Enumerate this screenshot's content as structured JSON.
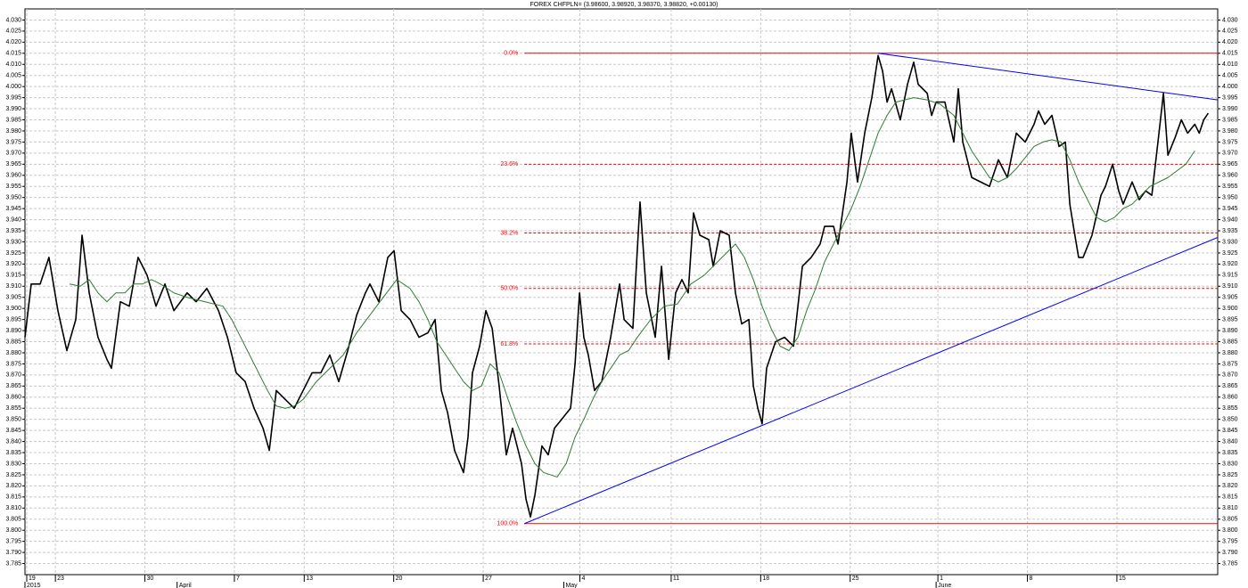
{
  "chart_data": {
    "type": "line",
    "title": "FOREX CHFPLN= (3.98600, 3.98920, 3.98370, 3.98820, +0.00130)",
    "xlim": [
      0,
      66.63
    ],
    "ylim": [
      3.78,
      4.035
    ],
    "grid": true,
    "yticks": [
      3.785,
      {
        "value": 3.79,
        "label": "3.790"
      },
      3.795,
      {
        "value": 3.8,
        "label": "3.800"
      },
      3.805,
      {
        "value": 3.81,
        "label": "3.810"
      },
      3.815,
      {
        "value": 3.82,
        "label": "3.820"
      },
      3.825,
      {
        "value": 3.83,
        "label": "3.830"
      },
      3.835,
      {
        "value": 3.84,
        "label": "3.840"
      },
      3.845,
      {
        "value": 3.85,
        "label": "3.850"
      },
      3.855,
      {
        "value": 3.86,
        "label": "3.860"
      },
      3.865,
      {
        "value": 3.87,
        "label": "3.870"
      },
      3.875,
      {
        "value": 3.88,
        "label": "3.880"
      },
      3.885,
      {
        "value": 3.89,
        "label": "3.890"
      },
      3.895,
      {
        "value": 3.9,
        "label": "3.900"
      },
      3.905,
      {
        "value": 3.91,
        "label": "3.910"
      },
      3.915,
      {
        "value": 3.92,
        "label": "3.920"
      },
      3.925,
      {
        "value": 3.93,
        "label": "3.930"
      },
      3.935,
      {
        "value": 3.94,
        "label": "3.940"
      },
      3.945,
      {
        "value": 3.95,
        "label": "3.950"
      },
      3.955,
      {
        "value": 3.96,
        "label": "3.960"
      },
      3.965,
      {
        "value": 3.97,
        "label": "3.970"
      },
      3.975,
      {
        "value": 3.98,
        "label": "3.980"
      },
      3.985,
      {
        "value": 3.99,
        "label": "3.990"
      },
      3.995,
      {
        "value": 4.0,
        "label": "4.000"
      },
      4.005,
      {
        "value": 4.01,
        "label": "4.010"
      },
      4.015,
      {
        "value": 4.02,
        "label": "4.020"
      },
      4.025,
      {
        "value": 4.03,
        "label": "4.030"
      }
    ],
    "xticks": [
      {
        "value": 0.1,
        "label": "19"
      },
      {
        "value": 1.7,
        "label": "23"
      },
      {
        "value": 6.7,
        "label": "30"
      },
      {
        "value": 11.7,
        "label": "7"
      },
      {
        "value": 15.6,
        "label": "13"
      },
      {
        "value": 20.6,
        "label": "20"
      },
      {
        "value": 25.6,
        "label": "27"
      },
      {
        "value": 31,
        "label": "4"
      },
      {
        "value": 36.1,
        "label": "11"
      },
      {
        "value": 41.1,
        "label": "18"
      },
      {
        "value": 46.1,
        "label": "25"
      },
      {
        "value": 51,
        "label": "1"
      },
      {
        "value": 56,
        "label": "8"
      },
      {
        "value": 61,
        "label": "15"
      }
    ],
    "month_labels": [
      {
        "value": 0,
        "label": "2015"
      },
      {
        "value": 8.5,
        "label": "April"
      },
      {
        "value": 30.1,
        "label": "May"
      },
      {
        "value": 50.9,
        "label": "June"
      }
    ],
    "series": [
      {
        "color": "#000000",
        "x": [
          0,
          0.35,
          0.85,
          1.34,
          1.84,
          2.34,
          2.84,
          3.19,
          3.59,
          4.08,
          4.58,
          4.83,
          5.33,
          5.83,
          6.32,
          6.82,
          7.32,
          7.82,
          8.32,
          9.06,
          9.56,
          10.16,
          10.81,
          11.31,
          11.8,
          12.3,
          12.8,
          13.3,
          13.65,
          14.04,
          14.54,
          15.04,
          15.54,
          16.04,
          16.53,
          17.03,
          17.53,
          18.03,
          18.53,
          19.02,
          19.27,
          19.77,
          20.27,
          20.62,
          21.02,
          21.51,
          22.01,
          22.51,
          22.91,
          23.26,
          23.61,
          24.0,
          24.5,
          24.75,
          25.0,
          25.4,
          25.75,
          26.1,
          26.49,
          26.89,
          27.24,
          27.49,
          27.74,
          27.99,
          28.24,
          28.49,
          28.88,
          29.23,
          29.58,
          29.98,
          30.48,
          30.73,
          30.98,
          31.22,
          31.47,
          31.82,
          32.22,
          32.72,
          33.22,
          33.47,
          33.96,
          34.36,
          34.71,
          35.21,
          35.56,
          35.96,
          36.35,
          36.7,
          37.05,
          37.35,
          37.7,
          38.2,
          38.45,
          38.84,
          39.34,
          39.69,
          40.04,
          40.44,
          40.69,
          40.94,
          41.18,
          41.43,
          41.93,
          42.43,
          42.93,
          43.43,
          43.92,
          44.42,
          44.67,
          45.17,
          45.42,
          45.92,
          46.16,
          46.51,
          46.91,
          47.31,
          47.66,
          47.91,
          48.16,
          48.41,
          48.9,
          49.3,
          49.65,
          49.9,
          50.4,
          50.65,
          50.9,
          51.39,
          51.89,
          52.14,
          52.39,
          52.89,
          53.39,
          53.88,
          54.38,
          54.88,
          55.38,
          55.88,
          56.37,
          56.62,
          56.97,
          57.37,
          57.77,
          58.12,
          58.37,
          58.61,
          58.86,
          59.11,
          59.61,
          60.11,
          60.36,
          60.76,
          61.1,
          61.35,
          61.85,
          62.25,
          62.6,
          62.95,
          63.35,
          63.6,
          63.85,
          64.25,
          64.6,
          64.95,
          65.35,
          65.6,
          65.85,
          66.1
        ],
        "values": [
          3.887,
          3.911,
          3.911,
          3.923,
          3.899,
          3.881,
          3.895,
          3.933,
          3.907,
          3.887,
          3.877,
          3.873,
          3.903,
          3.901,
          3.923,
          3.915,
          3.901,
          3.911,
          3.899,
          3.907,
          3.903,
          3.909,
          3.899,
          3.887,
          3.871,
          3.867,
          3.855,
          3.846,
          3.836,
          3.863,
          3.859,
          3.855,
          3.863,
          3.871,
          3.871,
          3.879,
          3.867,
          3.881,
          3.897,
          3.907,
          3.911,
          3.903,
          3.923,
          3.926,
          3.899,
          3.895,
          3.887,
          3.889,
          3.895,
          3.863,
          3.853,
          3.836,
          3.826,
          3.842,
          3.871,
          3.883,
          3.899,
          3.891,
          3.865,
          3.834,
          3.846,
          3.838,
          3.83,
          3.814,
          3.806,
          3.816,
          3.838,
          3.834,
          3.846,
          3.85,
          3.855,
          3.875,
          3.907,
          3.887,
          3.879,
          3.863,
          3.867,
          3.887,
          3.911,
          3.895,
          3.891,
          3.948,
          3.907,
          3.887,
          3.919,
          3.877,
          3.907,
          3.913,
          3.907,
          3.943,
          3.933,
          3.931,
          3.919,
          3.935,
          3.933,
          3.907,
          3.893,
          3.895,
          3.865,
          3.855,
          3.848,
          3.873,
          3.885,
          3.887,
          3.883,
          3.919,
          3.923,
          3.929,
          3.937,
          3.937,
          3.929,
          3.957,
          3.979,
          3.957,
          3.979,
          3.995,
          4.014,
          4.007,
          3.993,
          3.999,
          3.985,
          4.001,
          4.011,
          4.001,
          3.997,
          3.987,
          3.993,
          3.993,
          3.975,
          3.999,
          3.975,
          3.959,
          3.957,
          3.955,
          3.967,
          3.959,
          3.979,
          3.975,
          3.983,
          3.989,
          3.983,
          3.987,
          3.973,
          3.975,
          3.947,
          3.935,
          3.923,
          3.923,
          3.933,
          3.951,
          3.955,
          3.965,
          3.953,
          3.947,
          3.957,
          3.949,
          3.953,
          3.951,
          3.979,
          3.997,
          3.969,
          3.977,
          3.985,
          3.979,
          3.983,
          3.979,
          3.985,
          3.988
        ]
      },
      {
        "color": "#2e7d32",
        "x": [
          2.49,
          3.09,
          3.59,
          4.08,
          4.58,
          5.08,
          5.58,
          6.07,
          6.57,
          7.07,
          7.57,
          8.32,
          9.06,
          10.06,
          11.06,
          11.55,
          12.05,
          12.55,
          13.05,
          13.55,
          14.04,
          14.54,
          15.04,
          15.54,
          16.28,
          17.03,
          17.78,
          18.53,
          19.27,
          20.02,
          20.77,
          21.51,
          22.01,
          22.51,
          23.01,
          23.51,
          24.0,
          24.5,
          25.0,
          25.5,
          25.99,
          26.49,
          26.99,
          27.49,
          27.99,
          28.49,
          28.98,
          29.73,
          30.23,
          30.73,
          31.22,
          31.72,
          32.22,
          32.72,
          33.22,
          33.72,
          34.21,
          34.96,
          35.71,
          36.45,
          37.2,
          37.95,
          38.94,
          39.69,
          40.19,
          40.69,
          41.18,
          41.68,
          42.18,
          42.68,
          43.18,
          43.67,
          44.17,
          44.67,
          45.17,
          45.67,
          46.16,
          46.66,
          47.16,
          47.66,
          48.16,
          48.65,
          49.15,
          49.65,
          50.4,
          51.14,
          51.89,
          52.39,
          52.89,
          53.39,
          53.88,
          54.38,
          54.88,
          55.38,
          55.88,
          56.37,
          56.87,
          57.37,
          57.87,
          58.37,
          58.86,
          59.36,
          59.86,
          60.36,
          60.86,
          61.35,
          61.85,
          62.35,
          62.85,
          63.35,
          63.85,
          64.35,
          64.85,
          65.35
        ],
        "values": [
          3.911,
          3.91,
          3.913,
          3.907,
          3.903,
          3.907,
          3.907,
          3.911,
          3.911,
          3.913,
          3.911,
          3.907,
          3.905,
          3.903,
          3.901,
          3.895,
          3.887,
          3.879,
          3.871,
          3.863,
          3.856,
          3.855,
          3.856,
          3.859,
          3.867,
          3.873,
          3.879,
          3.889,
          3.897,
          3.905,
          3.913,
          3.909,
          3.903,
          3.895,
          3.885,
          3.879,
          3.873,
          3.867,
          3.863,
          3.865,
          3.875,
          3.871,
          3.859,
          3.848,
          3.838,
          3.83,
          3.826,
          3.824,
          3.83,
          3.842,
          3.85,
          3.859,
          3.867,
          3.873,
          3.879,
          3.881,
          3.887,
          3.895,
          3.901,
          3.902,
          3.911,
          3.915,
          3.923,
          3.929,
          3.923,
          3.913,
          3.901,
          3.891,
          3.883,
          3.881,
          3.887,
          3.899,
          3.909,
          3.921,
          3.929,
          3.937,
          3.945,
          3.955,
          3.967,
          3.979,
          3.987,
          3.993,
          3.994,
          3.995,
          3.994,
          3.992,
          3.987,
          3.979,
          3.971,
          3.965,
          3.959,
          3.957,
          3.959,
          3.963,
          3.968,
          3.973,
          3.975,
          3.976,
          3.975,
          3.967,
          3.957,
          3.949,
          3.941,
          3.939,
          3.941,
          3.945,
          3.947,
          3.951,
          3.955,
          3.957,
          3.959,
          3.962,
          3.965,
          3.971
        ]
      }
    ],
    "fibonacci": {
      "x": 27.9,
      "color": "#ff0000",
      "labels": [
        "0.0%",
        "23.6%",
        "38.2%",
        "50.0%",
        "61.8%",
        "100.0%"
      ],
      "values": [
        4.015,
        3.965,
        3.934,
        3.909,
        3.884,
        3.803
      ]
    },
    "trendlines": {
      "color": "#0000ff",
      "lines": [
        {
          "x": [
            27.9,
            66.63
          ],
          "values": [
            3.803,
            3.932
          ]
        },
        {
          "x": [
            47.66,
            66.63
          ],
          "values": [
            4.015,
            3.994
          ]
        }
      ]
    }
  }
}
